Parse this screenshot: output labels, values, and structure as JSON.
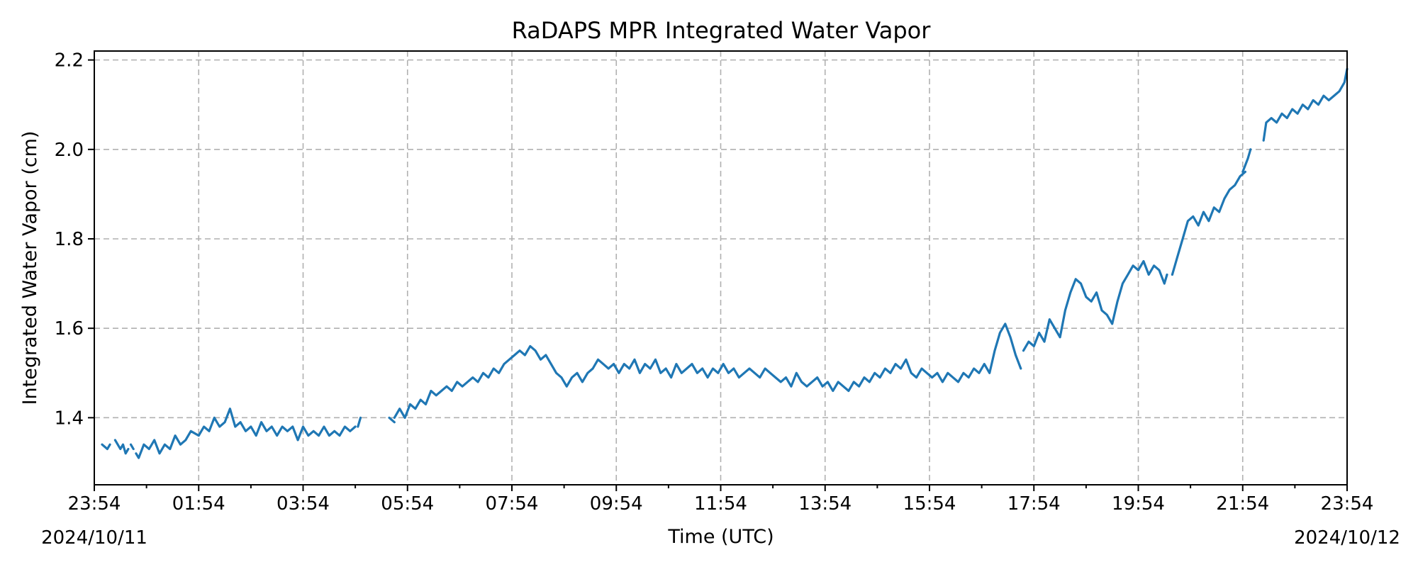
{
  "chart_data": {
    "type": "line",
    "title": "RaDAPS MPR Integrated Water Vapor",
    "xlabel": "Time (UTC)",
    "ylabel": "Integrated Water Vapor (cm)",
    "x_unit": "hours",
    "xlim": [
      0,
      24
    ],
    "ylim": [
      1.25,
      2.22
    ],
    "y_ticks": [
      1.4,
      1.6,
      1.8,
      2.0,
      2.2
    ],
    "y_tick_labels": [
      "1.4",
      "1.6",
      "1.8",
      "2.0",
      "2.2"
    ],
    "x_ticks": [
      0,
      2,
      4,
      6,
      8,
      10,
      12,
      14,
      16,
      18,
      20,
      22,
      24
    ],
    "x_tick_labels": [
      "23:54",
      "01:54",
      "03:54",
      "05:54",
      "07:54",
      "09:54",
      "11:54",
      "13:54",
      "15:54",
      "17:54",
      "19:54",
      "21:54",
      "23:54"
    ],
    "x_minor_ticks": [
      1,
      3,
      5,
      7,
      9,
      11,
      13,
      15,
      17,
      19,
      21,
      23
    ],
    "date_labels": {
      "start": "2024/10/11",
      "end": "2024/10/12"
    },
    "grid": true,
    "colors": {
      "series": "#1f77b4"
    },
    "series": [
      {
        "segments": [
          [
            [
              0.15,
              1.34
            ],
            [
              0.25,
              1.33
            ],
            [
              0.3,
              1.34
            ]
          ],
          [
            [
              0.4,
              1.35
            ],
            [
              0.5,
              1.33
            ],
            [
              0.55,
              1.34
            ],
            [
              0.6,
              1.32
            ],
            [
              0.65,
              1.33
            ]
          ],
          [
            [
              0.7,
              1.34
            ],
            [
              0.75,
              1.33
            ]
          ],
          [
            [
              0.8,
              1.32
            ],
            [
              0.85,
              1.31
            ],
            [
              0.95,
              1.34
            ],
            [
              1.05,
              1.33
            ],
            [
              1.15,
              1.35
            ],
            [
              1.25,
              1.32
            ],
            [
              1.35,
              1.34
            ],
            [
              1.45,
              1.33
            ],
            [
              1.55,
              1.36
            ],
            [
              1.65,
              1.34
            ],
            [
              1.75,
              1.35
            ],
            [
              1.85,
              1.37
            ],
            [
              2.0,
              1.36
            ],
            [
              2.1,
              1.38
            ],
            [
              2.2,
              1.37
            ],
            [
              2.3,
              1.4
            ],
            [
              2.4,
              1.38
            ],
            [
              2.5,
              1.39
            ],
            [
              2.6,
              1.42
            ],
            [
              2.7,
              1.38
            ],
            [
              2.8,
              1.39
            ],
            [
              2.9,
              1.37
            ],
            [
              3.0,
              1.38
            ],
            [
              3.1,
              1.36
            ],
            [
              3.2,
              1.39
            ],
            [
              3.3,
              1.37
            ],
            [
              3.4,
              1.38
            ],
            [
              3.5,
              1.36
            ],
            [
              3.6,
              1.38
            ],
            [
              3.7,
              1.37
            ],
            [
              3.8,
              1.38
            ],
            [
              3.9,
              1.35
            ],
            [
              4.0,
              1.38
            ],
            [
              4.1,
              1.36
            ],
            [
              4.2,
              1.37
            ],
            [
              4.3,
              1.36
            ],
            [
              4.4,
              1.38
            ],
            [
              4.5,
              1.36
            ],
            [
              4.6,
              1.37
            ],
            [
              4.7,
              1.36
            ],
            [
              4.8,
              1.38
            ],
            [
              4.9,
              1.37
            ],
            [
              5.0,
              1.38
            ]
          ],
          [
            [
              5.05,
              1.38
            ],
            [
              5.1,
              1.4
            ]
          ],
          [
            [
              5.65,
              1.4
            ],
            [
              5.75,
              1.39
            ]
          ],
          [
            [
              5.75,
              1.4
            ],
            [
              5.85,
              1.42
            ],
            [
              5.95,
              1.4
            ],
            [
              6.05,
              1.43
            ],
            [
              6.15,
              1.42
            ],
            [
              6.25,
              1.44
            ],
            [
              6.35,
              1.43
            ],
            [
              6.45,
              1.46
            ],
            [
              6.55,
              1.45
            ],
            [
              6.65,
              1.46
            ],
            [
              6.75,
              1.47
            ],
            [
              6.85,
              1.46
            ],
            [
              6.95,
              1.48
            ],
            [
              7.05,
              1.47
            ],
            [
              7.15,
              1.48
            ],
            [
              7.25,
              1.49
            ],
            [
              7.35,
              1.48
            ],
            [
              7.45,
              1.5
            ],
            [
              7.55,
              1.49
            ],
            [
              7.65,
              1.51
            ],
            [
              7.75,
              1.5
            ],
            [
              7.85,
              1.52
            ],
            [
              7.95,
              1.53
            ],
            [
              8.05,
              1.54
            ],
            [
              8.15,
              1.55
            ],
            [
              8.25,
              1.54
            ],
            [
              8.35,
              1.56
            ],
            [
              8.45,
              1.55
            ],
            [
              8.55,
              1.53
            ],
            [
              8.65,
              1.54
            ],
            [
              8.75,
              1.52
            ],
            [
              8.85,
              1.5
            ],
            [
              8.95,
              1.49
            ],
            [
              9.05,
              1.47
            ],
            [
              9.15,
              1.49
            ],
            [
              9.25,
              1.5
            ],
            [
              9.35,
              1.48
            ],
            [
              9.45,
              1.5
            ],
            [
              9.55,
              1.51
            ],
            [
              9.65,
              1.53
            ],
            [
              9.75,
              1.52
            ],
            [
              9.85,
              1.51
            ],
            [
              9.95,
              1.52
            ],
            [
              10.05,
              1.5
            ],
            [
              10.15,
              1.52
            ],
            [
              10.25,
              1.51
            ],
            [
              10.35,
              1.53
            ],
            [
              10.45,
              1.5
            ],
            [
              10.55,
              1.52
            ],
            [
              10.65,
              1.51
            ],
            [
              10.75,
              1.53
            ],
            [
              10.85,
              1.5
            ],
            [
              10.95,
              1.51
            ],
            [
              11.05,
              1.49
            ],
            [
              11.15,
              1.52
            ],
            [
              11.25,
              1.5
            ],
            [
              11.35,
              1.51
            ],
            [
              11.45,
              1.52
            ],
            [
              11.55,
              1.5
            ],
            [
              11.65,
              1.51
            ],
            [
              11.75,
              1.49
            ],
            [
              11.85,
              1.51
            ],
            [
              11.95,
              1.5
            ],
            [
              12.05,
              1.52
            ],
            [
              12.15,
              1.5
            ],
            [
              12.25,
              1.51
            ],
            [
              12.35,
              1.49
            ],
            [
              12.45,
              1.5
            ],
            [
              12.55,
              1.51
            ],
            [
              12.65,
              1.5
            ],
            [
              12.75,
              1.49
            ],
            [
              12.85,
              1.51
            ],
            [
              12.95,
              1.5
            ],
            [
              13.05,
              1.49
            ],
            [
              13.15,
              1.48
            ],
            [
              13.25,
              1.49
            ],
            [
              13.35,
              1.47
            ],
            [
              13.45,
              1.5
            ],
            [
              13.55,
              1.48
            ],
            [
              13.65,
              1.47
            ],
            [
              13.75,
              1.48
            ],
            [
              13.85,
              1.49
            ],
            [
              13.95,
              1.47
            ],
            [
              14.05,
              1.48
            ],
            [
              14.15,
              1.46
            ],
            [
              14.25,
              1.48
            ],
            [
              14.35,
              1.47
            ],
            [
              14.45,
              1.46
            ],
            [
              14.55,
              1.48
            ],
            [
              14.65,
              1.47
            ],
            [
              14.75,
              1.49
            ],
            [
              14.85,
              1.48
            ],
            [
              14.95,
              1.5
            ],
            [
              15.05,
              1.49
            ],
            [
              15.15,
              1.51
            ],
            [
              15.25,
              1.5
            ],
            [
              15.35,
              1.52
            ],
            [
              15.45,
              1.51
            ],
            [
              15.55,
              1.53
            ],
            [
              15.65,
              1.5
            ],
            [
              15.75,
              1.49
            ],
            [
              15.85,
              1.51
            ],
            [
              15.95,
              1.5
            ],
            [
              16.05,
              1.49
            ],
            [
              16.15,
              1.5
            ],
            [
              16.25,
              1.48
            ],
            [
              16.35,
              1.5
            ],
            [
              16.45,
              1.49
            ],
            [
              16.55,
              1.48
            ],
            [
              16.65,
              1.5
            ],
            [
              16.75,
              1.49
            ],
            [
              16.85,
              1.51
            ],
            [
              16.95,
              1.5
            ],
            [
              17.05,
              1.52
            ],
            [
              17.15,
              1.5
            ],
            [
              17.25,
              1.55
            ],
            [
              17.35,
              1.59
            ],
            [
              17.45,
              1.61
            ],
            [
              17.55,
              1.58
            ],
            [
              17.65,
              1.54
            ],
            [
              17.75,
              1.51
            ]
          ],
          [
            [
              17.8,
              1.55
            ],
            [
              17.9,
              1.57
            ],
            [
              18.0,
              1.56
            ],
            [
              18.1,
              1.59
            ],
            [
              18.2,
              1.57
            ],
            [
              18.3,
              1.62
            ],
            [
              18.4,
              1.6
            ],
            [
              18.5,
              1.58
            ],
            [
              18.6,
              1.64
            ],
            [
              18.7,
              1.68
            ],
            [
              18.8,
              1.71
            ],
            [
              18.9,
              1.7
            ],
            [
              19.0,
              1.67
            ],
            [
              19.1,
              1.66
            ],
            [
              19.2,
              1.68
            ],
            [
              19.3,
              1.64
            ],
            [
              19.4,
              1.63
            ],
            [
              19.5,
              1.61
            ],
            [
              19.6,
              1.66
            ],
            [
              19.7,
              1.7
            ],
            [
              19.8,
              1.72
            ],
            [
              19.9,
              1.74
            ],
            [
              20.0,
              1.73
            ],
            [
              20.1,
              1.75
            ],
            [
              20.2,
              1.72
            ],
            [
              20.3,
              1.74
            ],
            [
              20.4,
              1.73
            ],
            [
              20.5,
              1.7
            ],
            [
              20.55,
              1.72
            ]
          ],
          [
            [
              20.65,
              1.72
            ],
            [
              20.75,
              1.76
            ],
            [
              20.85,
              1.8
            ],
            [
              20.95,
              1.84
            ],
            [
              21.05,
              1.85
            ],
            [
              21.15,
              1.83
            ],
            [
              21.25,
              1.86
            ],
            [
              21.35,
              1.84
            ],
            [
              21.45,
              1.87
            ],
            [
              21.55,
              1.86
            ],
            [
              21.65,
              1.89
            ],
            [
              21.75,
              1.91
            ],
            [
              21.85,
              1.92
            ],
            [
              21.95,
              1.94
            ],
            [
              22.05,
              1.95
            ]
          ],
          [
            [
              22.0,
              1.95
            ],
            [
              22.1,
              1.98
            ],
            [
              22.15,
              2.0
            ]
          ],
          [
            [
              22.4,
              2.02
            ],
            [
              22.45,
              2.06
            ],
            [
              22.55,
              2.07
            ],
            [
              22.65,
              2.06
            ],
            [
              22.75,
              2.08
            ],
            [
              22.85,
              2.07
            ],
            [
              22.95,
              2.09
            ],
            [
              23.05,
              2.08
            ],
            [
              23.15,
              2.1
            ],
            [
              23.25,
              2.09
            ],
            [
              23.35,
              2.11
            ],
            [
              23.45,
              2.1
            ],
            [
              23.55,
              2.12
            ],
            [
              23.65,
              2.11
            ],
            [
              23.75,
              2.12
            ],
            [
              23.85,
              2.13
            ],
            [
              23.95,
              2.15
            ],
            [
              24.0,
              2.18
            ]
          ]
        ]
      }
    ]
  }
}
